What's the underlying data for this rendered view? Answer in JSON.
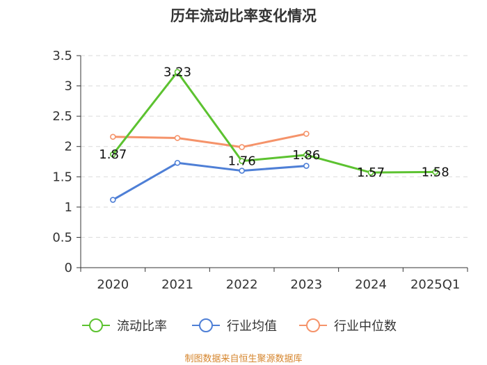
{
  "chart_data": {
    "type": "line",
    "title": "历年流动比率变化情况",
    "categories": [
      "2020",
      "2021",
      "2022",
      "2023",
      "2024",
      "2025Q1"
    ],
    "ylim": [
      0,
      3.5
    ],
    "yticks": [
      "0",
      "0.5",
      "1",
      "1.5",
      "2",
      "2.5",
      "3",
      "3.5"
    ],
    "grid": true,
    "legend_position": "bottom",
    "series": [
      {
        "name": "流动比率",
        "color": "#5cc230",
        "values": [
          1.87,
          3.23,
          1.76,
          1.86,
          1.57,
          1.58
        ],
        "labels": [
          "1.87",
          "3.23",
          "1.76",
          "1.86",
          "1.57",
          "1.58"
        ]
      },
      {
        "name": "行业均值",
        "color": "#4e7fd6",
        "values": [
          1.12,
          1.73,
          1.6,
          1.68,
          null,
          null
        ]
      },
      {
        "name": "行业中位数",
        "color": "#f5936a",
        "values": [
          2.16,
          2.14,
          1.99,
          2.21,
          null,
          null
        ]
      }
    ],
    "source": "制图数据来自恒生聚源数据库"
  }
}
